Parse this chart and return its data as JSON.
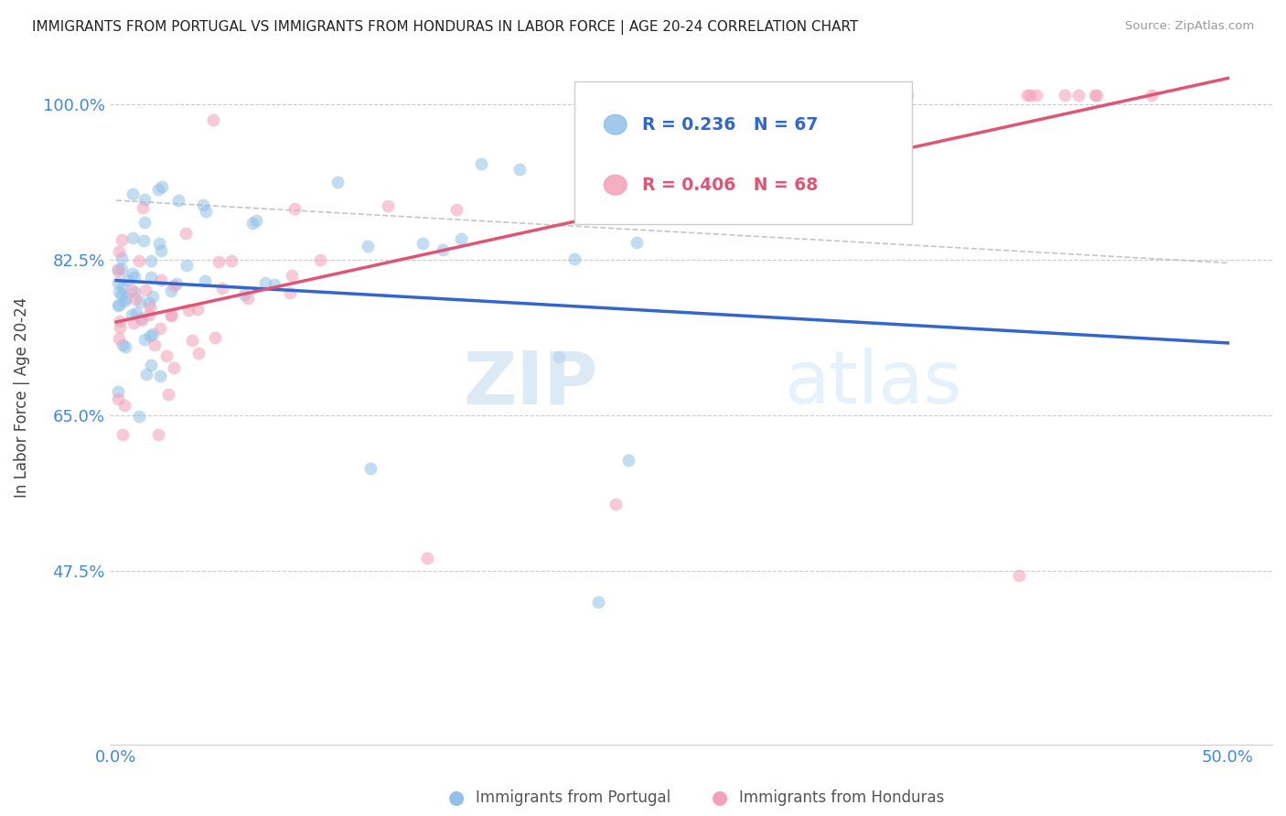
{
  "title": "IMMIGRANTS FROM PORTUGAL VS IMMIGRANTS FROM HONDURAS IN LABOR FORCE | AGE 20-24 CORRELATION CHART",
  "source": "Source: ZipAtlas.com",
  "ylabel": "In Labor Force | Age 20-24",
  "color_portugal": "#90c0e8",
  "color_honduras": "#f4a0b8",
  "color_portugal_line": "#3366cc",
  "color_honduras_line": "#e05575",
  "color_axis_labels": "#4488dd",
  "color_grid": "#cccccc",
  "marker_size": 100,
  "marker_alpha": 0.55,
  "legend_R1": "R = 0.236",
  "legend_N1": "N = 67",
  "legend_R2": "R = 0.406",
  "legend_N2": "N = 68",
  "xlim": [
    -0.003,
    0.52
  ],
  "ylim": [
    0.28,
    1.06
  ],
  "ytick_positions": [
    0.475,
    0.65,
    0.825,
    1.0
  ],
  "ytick_labels": [
    "47.5%",
    "65.0%",
    "82.5%",
    "100.0%"
  ],
  "xtick_positions": [
    0.0,
    0.05,
    0.1,
    0.15,
    0.2,
    0.25,
    0.3,
    0.35,
    0.4,
    0.45,
    0.5
  ],
  "xtick_labels": [
    "0.0%",
    "",
    "",
    "",
    "",
    "",
    "",
    "",
    "",
    "",
    "50.0%"
  ]
}
